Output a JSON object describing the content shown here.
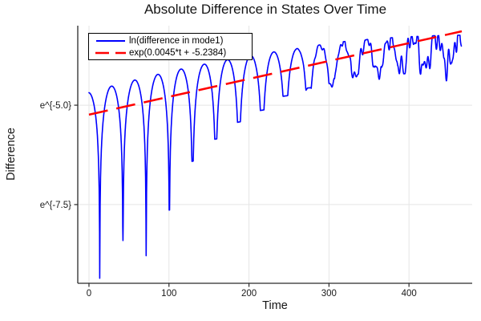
{
  "chart_data": {
    "type": "line",
    "title": "Absolute Difference in States Over Time",
    "xlabel": "Time",
    "ylabel": "Difference",
    "grid": true,
    "legend_position": "top-left-inside",
    "xlim": [
      -14,
      479
    ],
    "ylim_ln": [
      -9.48,
      -3.0
    ],
    "xticks": {
      "values": [
        0,
        100,
        200,
        300,
        400
      ],
      "labels": [
        "0",
        "100",
        "200",
        "300",
        "400"
      ]
    },
    "yticks": {
      "values_ln": [
        -5.0,
        -7.5
      ],
      "labels": [
        "e^{-5.0}",
        "e^{-7.5}"
      ]
    },
    "colors": {
      "axis": "#2a2a2a",
      "grid": "#e5e5e5",
      "tick_text": "#1a1a1a",
      "background": "#ffffff"
    },
    "series": [
      {
        "name": "ln(difference in mode1)",
        "color": "#0000ff",
        "style": "solid",
        "line_width": 1.6,
        "model": {
          "type": "log-abs-oscillation",
          "t_start": 0,
          "t_end": 465.5,
          "dt": 0.25,
          "zero_period": 29,
          "first_zero_t": 13.5,
          "envelope_ln": {
            "c0": -4.68,
            "c1": 0.0058,
            "c2": -6e-06
          },
          "cusp_depths_ln": [
            4.75,
            3.96,
            4.49,
            3.48,
            2.38,
            1.94,
            1.62,
            1.42,
            1.15,
            1.04,
            0.98,
            0.8,
            0.78,
            0.72,
            0.7,
            0.66
          ],
          "noise": {
            "start_t": 255,
            "max_amp": 0.38,
            "components": [
              [
                6.5,
                0.55,
                0.4
              ],
              [
                4.2,
                0.35,
                1.9
              ],
              [
                10.3,
                0.45,
                2.6
              ]
            ]
          }
        }
      },
      {
        "name": "exp(0.0045*t + -5.2384)",
        "color": "#ff0000",
        "style": "dashed",
        "line_width": 2.5,
        "dash": [
          24,
          11
        ],
        "model": {
          "type": "linear-ln",
          "slope": 0.0045,
          "intercept": -5.2384,
          "t_start": 0,
          "t_end": 466
        }
      }
    ]
  }
}
